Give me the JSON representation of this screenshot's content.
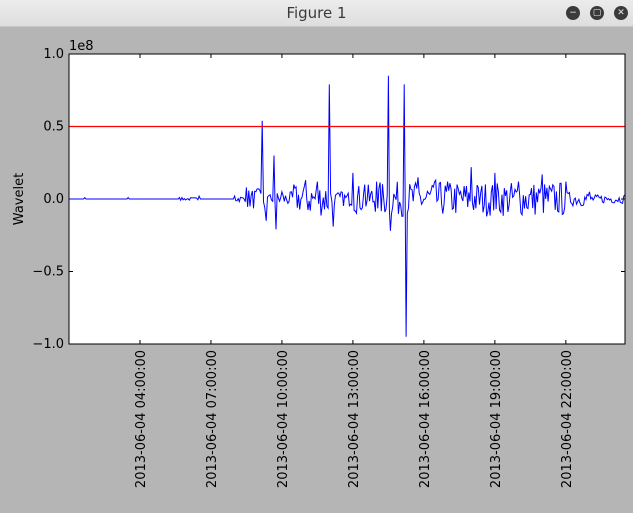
{
  "window": {
    "title": "Figure 1",
    "buttons": {
      "minimize": "−",
      "maximize": "▢",
      "close": "✕"
    }
  },
  "chart_data": {
    "type": "line",
    "ylabel": "Wavelet",
    "offset_label": "1e8",
    "ylim": [
      -1.0,
      1.0
    ],
    "yticks": [
      1.0,
      0.5,
      0.0,
      -0.5,
      -1.0
    ],
    "ytick_labels": [
      "1.0",
      "0.5",
      "0.0",
      "−0.5",
      "−1.0"
    ],
    "xlim": [
      "2013-06-04 01:00",
      "2013-06-05 00:30"
    ],
    "xtick_labels": [
      "2013-06-04 04:00:00",
      "2013-06-04 07:00:00",
      "2013-06-04 10:00:00",
      "2013-06-04 13:00:00",
      "2013-06-04 16:00:00",
      "2013-06-04 19:00:00",
      "2013-06-04 22:00:00"
    ],
    "series_colors": [
      "#0000ff",
      "#ff0000"
    ],
    "threshold": 0.5,
    "series": [
      {
        "values": [
          [
            "2013-06-04 01:00",
            0.0
          ],
          [
            "2013-06-04 01:40",
            0.01
          ],
          [
            "2013-06-04 02:30",
            0.0
          ],
          [
            "2013-06-04 03:30",
            0.01
          ],
          [
            "2013-06-04 04:30",
            0.0
          ],
          [
            "2013-06-04 05:40",
            0.01
          ],
          [
            "2013-06-04 06:30",
            0.02
          ],
          [
            "2013-06-04 07:20",
            0.0
          ],
          [
            "2013-06-04 08:00",
            0.02
          ],
          [
            "2013-06-04 08:30",
            0.08
          ],
          [
            "2013-06-04 09:00",
            0.07
          ],
          [
            "2013-06-04 09:10",
            0.54
          ],
          [
            "2013-06-04 09:20",
            -0.15
          ],
          [
            "2013-06-04 09:30",
            0.03
          ],
          [
            "2013-06-04 09:40",
            0.3
          ],
          [
            "2013-06-04 09:45",
            -0.21
          ],
          [
            "2013-06-04 10:00",
            0.05
          ],
          [
            "2013-06-04 10:30",
            0.1
          ],
          [
            "2013-06-04 11:00",
            0.13
          ],
          [
            "2013-06-04 11:30",
            0.12
          ],
          [
            "2013-06-04 12:00",
            0.79
          ],
          [
            "2013-06-04 12:10",
            -0.19
          ],
          [
            "2013-06-04 12:30",
            0.05
          ],
          [
            "2013-06-04 13:00",
            0.18
          ],
          [
            "2013-06-04 13:30",
            0.1
          ],
          [
            "2013-06-04 14:00",
            0.12
          ],
          [
            "2013-06-04 14:30",
            0.85
          ],
          [
            "2013-06-04 14:35",
            -0.22
          ],
          [
            "2013-06-04 15:10",
            0.79
          ],
          [
            "2013-06-04 15:15",
            -0.95
          ],
          [
            "2013-06-04 15:45",
            0.15
          ],
          [
            "2013-06-04 16:30",
            0.13
          ],
          [
            "2013-06-04 17:00",
            0.12
          ],
          [
            "2013-06-04 18:00",
            0.22
          ],
          [
            "2013-06-04 19:00",
            0.18
          ],
          [
            "2013-06-04 20:00",
            0.12
          ],
          [
            "2013-06-04 21:00",
            0.17
          ],
          [
            "2013-06-04 22:00",
            0.12
          ],
          [
            "2013-06-04 23:00",
            0.05
          ],
          [
            "2013-06-05 00:30",
            0.03
          ]
        ]
      },
      {
        "values": [
          [
            "2013-06-04 01:00",
            0.5
          ],
          [
            "2013-06-05 00:30",
            0.5
          ]
        ]
      }
    ]
  }
}
